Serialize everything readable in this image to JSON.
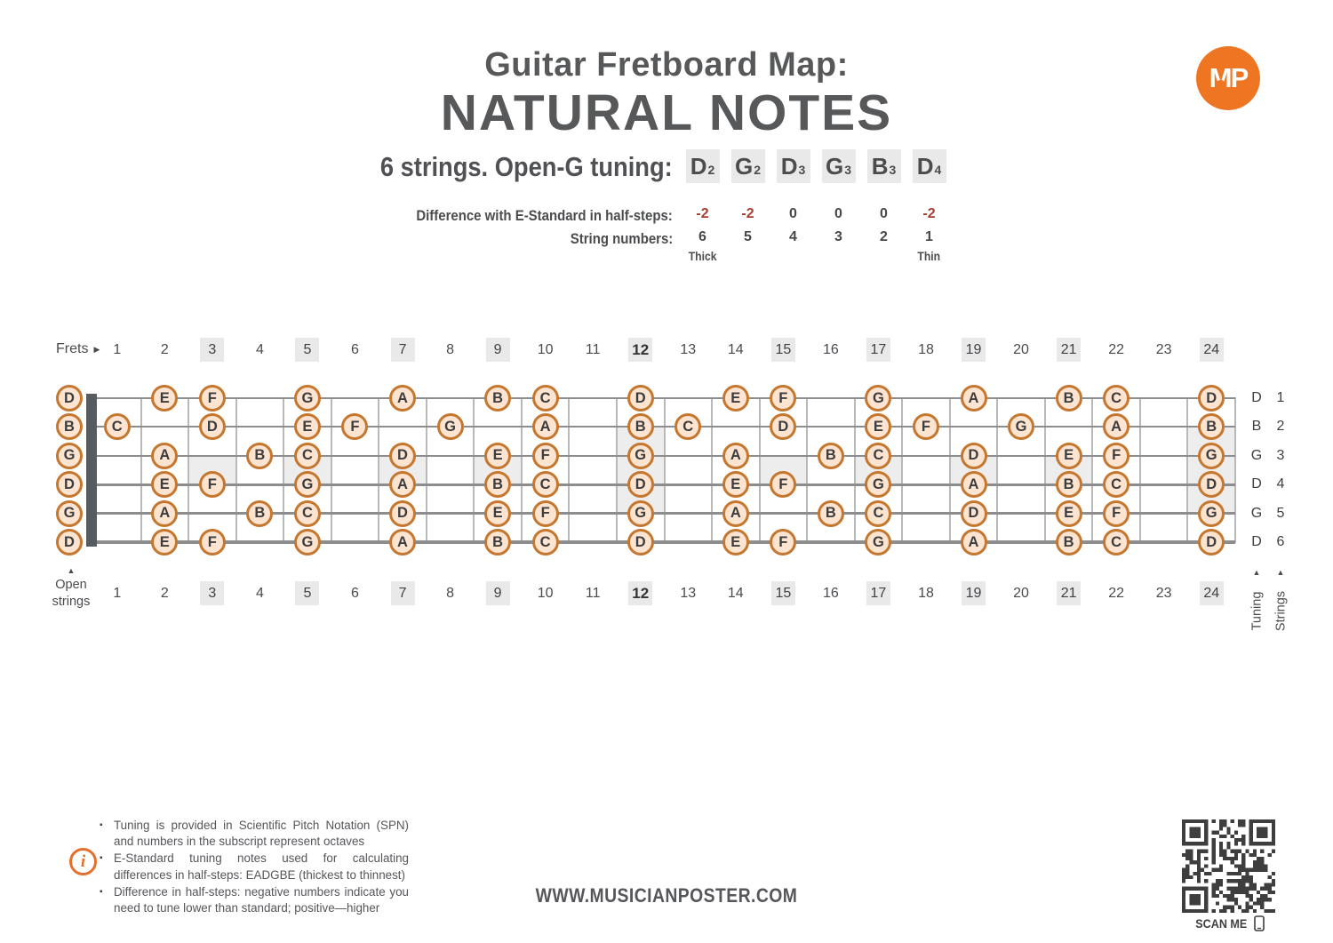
{
  "header": {
    "title_line1": "Guitar Fretboard Map:",
    "title_line2": "NATURAL NOTES",
    "logo_text": "MP"
  },
  "tuning": {
    "label": "6 strings. Open-G tuning:",
    "notes": [
      {
        "note": "D",
        "octave": "2"
      },
      {
        "note": "G",
        "octave": "2"
      },
      {
        "note": "D",
        "octave": "3"
      },
      {
        "note": "G",
        "octave": "3"
      },
      {
        "note": "B",
        "octave": "3"
      },
      {
        "note": "D",
        "octave": "4"
      }
    ],
    "difference_label": "Difference with E-Standard in half-steps:",
    "difference_values": [
      "-2",
      "-2",
      "0",
      "0",
      "0",
      "-2"
    ],
    "string_numbers_label": "String numbers:",
    "string_numbers": [
      "6",
      "5",
      "4",
      "3",
      "2",
      "1"
    ],
    "thick_label": "Thick",
    "thin_label": "Thin"
  },
  "fretboard": {
    "frets_label": "Frets",
    "fret_count": 24,
    "marked_frets": [
      3,
      5,
      7,
      9,
      12,
      15,
      17,
      19,
      21,
      24
    ],
    "bold_fret": 12,
    "single_inlay_frets": [
      3,
      5,
      7,
      9,
      15,
      17,
      19,
      21
    ],
    "wide_inlay_frets": [
      12,
      24
    ],
    "open_strings_label_line1": "Open",
    "open_strings_label_line2": "strings",
    "tuning_axis_label": "Tuning",
    "strings_axis_label": "Strings",
    "strings": [
      {
        "number": "1",
        "open_note": "D",
        "notes": [
          [
            2,
            "E"
          ],
          [
            3,
            "F"
          ],
          [
            5,
            "G"
          ],
          [
            7,
            "A"
          ],
          [
            9,
            "B"
          ],
          [
            10,
            "C"
          ],
          [
            12,
            "D"
          ],
          [
            14,
            "E"
          ],
          [
            15,
            "F"
          ],
          [
            17,
            "G"
          ],
          [
            19,
            "A"
          ],
          [
            21,
            "B"
          ],
          [
            22,
            "C"
          ],
          [
            24,
            "D"
          ]
        ]
      },
      {
        "number": "2",
        "open_note": "B",
        "notes": [
          [
            1,
            "C"
          ],
          [
            3,
            "D"
          ],
          [
            5,
            "E"
          ],
          [
            6,
            "F"
          ],
          [
            8,
            "G"
          ],
          [
            10,
            "A"
          ],
          [
            12,
            "B"
          ],
          [
            13,
            "C"
          ],
          [
            15,
            "D"
          ],
          [
            17,
            "E"
          ],
          [
            18,
            "F"
          ],
          [
            20,
            "G"
          ],
          [
            22,
            "A"
          ],
          [
            24,
            "B"
          ]
        ]
      },
      {
        "number": "3",
        "open_note": "G",
        "notes": [
          [
            2,
            "A"
          ],
          [
            4,
            "B"
          ],
          [
            5,
            "C"
          ],
          [
            7,
            "D"
          ],
          [
            9,
            "E"
          ],
          [
            10,
            "F"
          ],
          [
            12,
            "G"
          ],
          [
            14,
            "A"
          ],
          [
            16,
            "B"
          ],
          [
            17,
            "C"
          ],
          [
            19,
            "D"
          ],
          [
            21,
            "E"
          ],
          [
            22,
            "F"
          ],
          [
            24,
            "G"
          ]
        ]
      },
      {
        "number": "4",
        "open_note": "D",
        "notes": [
          [
            2,
            "E"
          ],
          [
            3,
            "F"
          ],
          [
            5,
            "G"
          ],
          [
            7,
            "A"
          ],
          [
            9,
            "B"
          ],
          [
            10,
            "C"
          ],
          [
            12,
            "D"
          ],
          [
            14,
            "E"
          ],
          [
            15,
            "F"
          ],
          [
            17,
            "G"
          ],
          [
            19,
            "A"
          ],
          [
            21,
            "B"
          ],
          [
            22,
            "C"
          ],
          [
            24,
            "D"
          ]
        ]
      },
      {
        "number": "5",
        "open_note": "G",
        "notes": [
          [
            2,
            "A"
          ],
          [
            4,
            "B"
          ],
          [
            5,
            "C"
          ],
          [
            7,
            "D"
          ],
          [
            9,
            "E"
          ],
          [
            10,
            "F"
          ],
          [
            12,
            "G"
          ],
          [
            14,
            "A"
          ],
          [
            16,
            "B"
          ],
          [
            17,
            "C"
          ],
          [
            19,
            "D"
          ],
          [
            21,
            "E"
          ],
          [
            22,
            "F"
          ],
          [
            24,
            "G"
          ]
        ]
      },
      {
        "number": "6",
        "open_note": "D",
        "notes": [
          [
            2,
            "E"
          ],
          [
            3,
            "F"
          ],
          [
            5,
            "G"
          ],
          [
            7,
            "A"
          ],
          [
            9,
            "B"
          ],
          [
            10,
            "C"
          ],
          [
            12,
            "D"
          ],
          [
            14,
            "E"
          ],
          [
            15,
            "F"
          ],
          [
            17,
            "G"
          ],
          [
            19,
            "A"
          ],
          [
            21,
            "B"
          ],
          [
            22,
            "C"
          ],
          [
            24,
            "D"
          ]
        ]
      }
    ]
  },
  "footer": {
    "bullets": [
      "Tuning is provided in Scientific Pitch Notation (SPN) and numbers in the subscript represent octaves",
      "E-Standard tuning notes used for calculating differences in half-steps: EADGBE (thickest to thinnest)",
      "Difference in half-steps: negative numbers indicate you need to tune lower than standard; positive—higher"
    ],
    "info_icon": "i",
    "url": "WWW.MUSICIANPOSTER.COM",
    "scan_me": "SCAN ME"
  },
  "colors": {
    "accent_orange": "#ee7623",
    "circle_ring": "#c6772f",
    "circle_fill": "#fce4d0",
    "negative_red": "#a63d33",
    "text_dark": "#47484a",
    "highlight_gray": "#e9e9ea",
    "inlay_gray": "#ededee"
  }
}
